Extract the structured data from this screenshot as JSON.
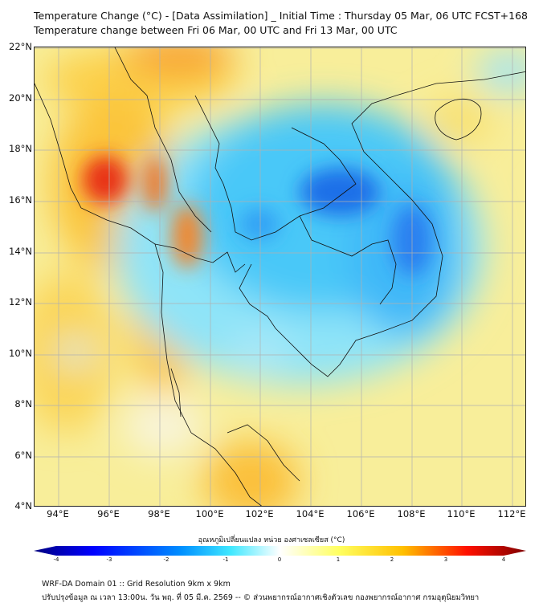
{
  "title": {
    "line1": "Temperature Change (°C) - [Data Assimilation] _ Initial Time : Thursday 05 Mar, 06 UTC FCST+168",
    "line2": "Temperature change between Fri 06 Mar, 00 UTC and Fri 13 Mar, 00 UTC"
  },
  "axes": {
    "lat_labels": [
      "22°N",
      "20°N",
      "18°N",
      "16°N",
      "14°N",
      "12°N",
      "10°N",
      "8°N",
      "6°N",
      "4°N"
    ],
    "lon_labels": [
      "94°E",
      "96°E",
      "98°E",
      "100°E",
      "102°E",
      "104°E",
      "106°E",
      "108°E",
      "110°E",
      "112°E"
    ]
  },
  "colorbar": {
    "title": "อุณหภูมิเปลี่ยนแปลง หน่วย องศาเซลเซียส (°C)",
    "ticks": [
      "-4",
      "-3",
      "-2",
      "-1",
      "0",
      "1",
      "2",
      "3",
      "4"
    ],
    "range": [
      -4,
      4
    ],
    "colors": [
      "#00007f",
      "#0000ff",
      "#0080ff",
      "#40e0ff",
      "#ffffff",
      "#ffff60",
      "#ffc000",
      "#ff2000",
      "#7f0000"
    ]
  },
  "footer": {
    "line1": "WRF-DA Domain 01 :: Grid Resolution 9km x 9km",
    "line2": "ปรับปรุงข้อมูล ณ เวลา 13:00น. วัน พฤ. ที่ 05 มี.ค. 2569 -- © ส่วนพยากรณ์อากาศเชิงตัวเลข กองพยากรณ์อากาศ กรมอุตุนิยมวิทยา"
  }
}
